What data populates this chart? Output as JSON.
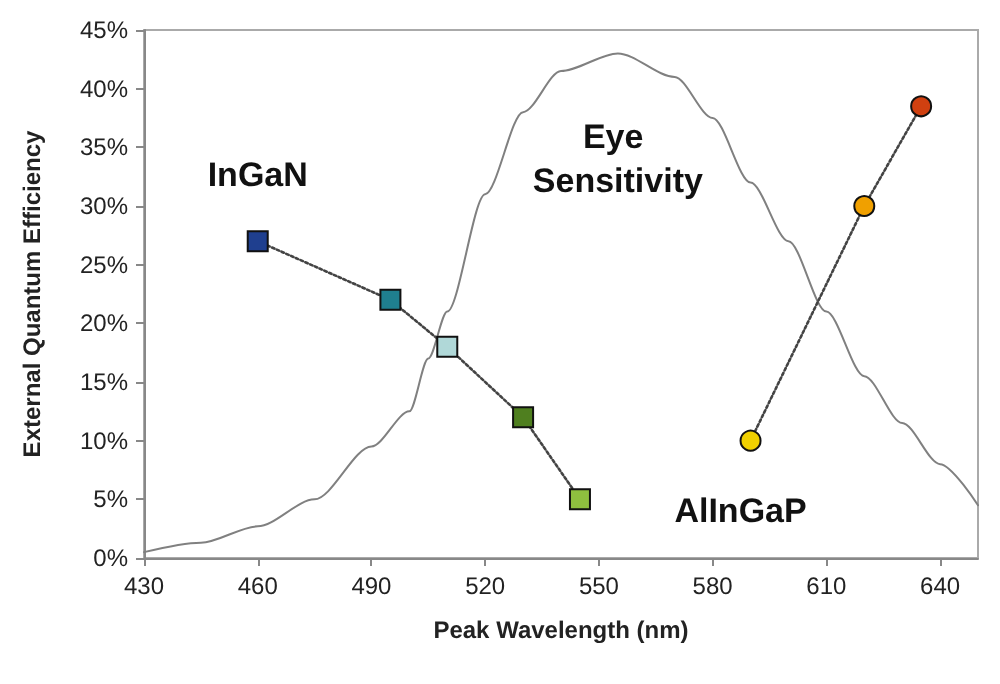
{
  "chart_data": {
    "type": "line",
    "xlabel": "Peak Wavelength (nm)",
    "ylabel": "External Quantum Efficiency",
    "xlim": [
      430,
      650
    ],
    "xticks": [
      430,
      460,
      490,
      520,
      550,
      580,
      610,
      640
    ],
    "ylim": [
      0,
      45
    ],
    "yticks": [
      {
        "value": 0,
        "label": "0%"
      },
      {
        "value": 5,
        "label": "5%"
      },
      {
        "value": 10,
        "label": "10%"
      },
      {
        "value": 15,
        "label": "15%"
      },
      {
        "value": 20,
        "label": "20%"
      },
      {
        "value": 25,
        "label": "25%"
      },
      {
        "value": 30,
        "label": "30%"
      },
      {
        "value": 35,
        "label": "35%"
      },
      {
        "value": 40,
        "label": "40%"
      },
      {
        "value": 45,
        "label": "45%"
      }
    ],
    "grid": false,
    "legend": false,
    "series": [
      {
        "name": "InGaN",
        "x": [
          460,
          495,
          510,
          530,
          545
        ],
        "values": [
          27,
          22,
          18,
          12,
          5
        ],
        "colors": [
          "#1f3f8f",
          "#1f7f8f",
          "#b0d8d8",
          "#4f7f1f",
          "#8fbf3f"
        ],
        "color": "#444444",
        "marker": "square",
        "line_style": "dotted"
      },
      {
        "name": "Eye Sensitivity",
        "x": [
          430,
          445,
          460,
          475,
          490,
          500,
          505,
          510,
          520,
          530,
          540,
          555,
          570,
          580,
          590,
          600,
          610,
          620,
          630,
          640,
          650
        ],
        "values": [
          0.5,
          1.3,
          2.7,
          5,
          9.5,
          12.5,
          17,
          21,
          31,
          38,
          41.5,
          43,
          41,
          37.5,
          32,
          27,
          21,
          15.5,
          11.5,
          8,
          4.5
        ],
        "color": "#808080",
        "marker": "none",
        "line_style": "solid"
      },
      {
        "name": "AlInGaP",
        "x": [
          590,
          620,
          635
        ],
        "values": [
          10,
          30,
          38.5
        ],
        "colors": [
          "#f0d000",
          "#f0a000",
          "#d04010"
        ],
        "color": "#444444",
        "marker": "circle",
        "line_style": "dotted"
      }
    ]
  }
}
